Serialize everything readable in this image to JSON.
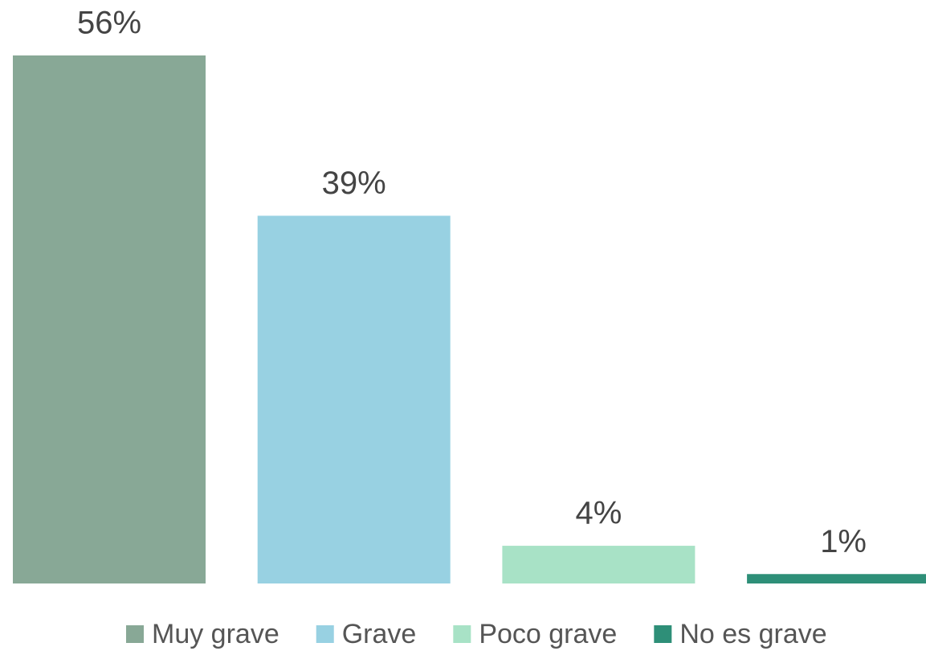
{
  "chart_data": {
    "type": "bar",
    "categories": [
      "Muy grave",
      "Grave",
      "Poco grave",
      "No es grave"
    ],
    "values": [
      56,
      39,
      4,
      1
    ],
    "value_labels": [
      "56%",
      "39%",
      "4%",
      "1%"
    ],
    "colors": [
      "#88a896",
      "#98d1e2",
      "#a8e2c6",
      "#2e8f78"
    ],
    "legend": "bottom"
  }
}
